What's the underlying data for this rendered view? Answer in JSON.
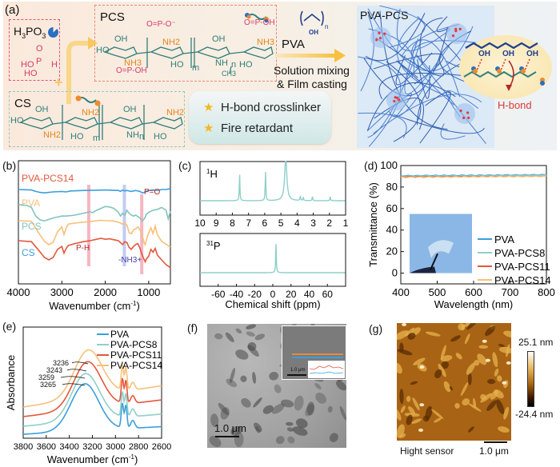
{
  "panel_a": {
    "label": "(a)",
    "h3po3": {
      "title_main": "H",
      "title_sub1": "3",
      "title_mid": "PO",
      "title_sub2": "3",
      "formula_o": "O",
      "formula_p": "P",
      "formula_h": "H",
      "formula_ho1": "HO",
      "formula_ho2": "HO"
    },
    "pcs_title": "PCS",
    "cs_title": "CS",
    "pva_label": "PVA",
    "pva_repeat_oh": "OH",
    "pva_repeat_n": "n",
    "process_line1": "Solution mixing",
    "process_line2": "& Film casting",
    "composite_title": "PVA-PCS",
    "features": [
      "H-bond crosslinker",
      "Fire retardant"
    ],
    "hbond_label": "H-bond",
    "bubble_oh": [
      "OH",
      "OH",
      "OH"
    ],
    "groups": {
      "nh2": "NH2",
      "nh3": "NH3",
      "oh": "OH",
      "ho": "HO",
      "m": "m",
      "n": "n",
      "ch3": "CH3",
      "nh": "NH"
    },
    "colors": {
      "pcs_box": "#e9877a",
      "cs_box": "#8fc9c6",
      "h3po3_box": "#e2507a",
      "arrow": "#f7c862",
      "chain": "#2f7f7a",
      "phosphite": "#d63b6a",
      "amine": "#e0871c",
      "hbond": "#d83a3a"
    }
  },
  "chart_data": [
    {
      "id": "b",
      "type": "line",
      "panel_label": "(b)",
      "title": "",
      "xlabel": "Wavenumber (cm-1)",
      "ylabel": "",
      "xlim": [
        4000,
        500
      ],
      "x_ticks": [
        4000,
        3000,
        2000,
        1000
      ],
      "x_tick_labels": [
        "4000",
        "3000",
        "2000",
        "1000"
      ],
      "y_ticks_shown": false,
      "series": [
        {
          "name": "PVA-PCS14",
          "color": "#e4573c",
          "offset": 3,
          "x": [
            4000,
            3700,
            3550,
            3400,
            3300,
            3200,
            3100,
            3000,
            2950,
            2900,
            2850,
            2700,
            2500,
            2350,
            2200,
            2100,
            2000,
            1900,
            1800,
            1700,
            1650,
            1600,
            1550,
            1500,
            1450,
            1400,
            1350,
            1300,
            1250,
            1200,
            1150,
            1100,
            1080,
            1050,
            1000,
            950,
            900,
            850,
            800,
            700,
            600,
            500
          ],
          "y": [
            0.9,
            0.88,
            0.72,
            0.55,
            0.5,
            0.55,
            0.72,
            0.78,
            0.64,
            0.74,
            0.8,
            0.84,
            0.88,
            0.9,
            0.93,
            0.95,
            0.93,
            0.94,
            0.92,
            0.9,
            0.86,
            0.82,
            0.88,
            0.86,
            0.76,
            0.72,
            0.78,
            0.82,
            0.84,
            0.74,
            0.6,
            0.5,
            0.46,
            0.52,
            0.58,
            0.72,
            0.66,
            0.74,
            0.6,
            0.5,
            0.4,
            0.34
          ]
        },
        {
          "name": "PVA",
          "color": "#f7c07a",
          "offset": 2,
          "x": [
            4000,
            3700,
            3550,
            3400,
            3300,
            3200,
            3100,
            3000,
            2950,
            2900,
            2850,
            2700,
            2500,
            2350,
            2200,
            2100,
            2000,
            1900,
            1800,
            1700,
            1650,
            1600,
            1550,
            1500,
            1450,
            1400,
            1350,
            1300,
            1250,
            1200,
            1150,
            1100,
            1080,
            1050,
            1000,
            950,
            900,
            850,
            800,
            700,
            600,
            500
          ],
          "y": [
            0.85,
            0.84,
            0.62,
            0.42,
            0.35,
            0.4,
            0.62,
            0.72,
            0.56,
            0.7,
            0.78,
            0.8,
            0.82,
            0.83,
            0.85,
            0.86,
            0.85,
            0.85,
            0.84,
            0.82,
            0.8,
            0.78,
            0.8,
            0.76,
            0.6,
            0.58,
            0.66,
            0.68,
            0.72,
            0.66,
            0.54,
            0.38,
            0.35,
            0.46,
            0.6,
            0.7,
            0.58,
            0.74,
            0.56,
            0.42,
            0.36,
            0.3
          ]
        },
        {
          "name": "PCS",
          "color": "#82c4bc",
          "offset": 1,
          "x": [
            4000,
            3800,
            3700,
            3600,
            3500,
            3400,
            3300,
            3200,
            3000,
            2900,
            2700,
            2500,
            2350,
            2300,
            2200,
            2100,
            2000,
            1900,
            1800,
            1700,
            1650,
            1600,
            1550,
            1500,
            1450,
            1400,
            1350,
            1300,
            1200,
            1150,
            1100,
            1050,
            1000,
            950,
            900,
            800,
            700,
            600,
            550,
            500
          ],
          "y": [
            0.72,
            0.7,
            0.66,
            0.48,
            0.4,
            0.38,
            0.41,
            0.44,
            0.48,
            0.48,
            0.5,
            0.54,
            0.57,
            0.55,
            0.6,
            0.64,
            0.68,
            0.67,
            0.64,
            0.56,
            0.48,
            0.54,
            0.5,
            0.6,
            0.54,
            0.5,
            0.48,
            0.5,
            0.44,
            0.38,
            0.42,
            0.52,
            0.56,
            0.58,
            0.6,
            0.62,
            0.66,
            0.6,
            0.42,
            0.58
          ]
        },
        {
          "name": "CS",
          "color": "#3b9fdb",
          "offset": 0,
          "x": [
            4000,
            3700,
            3600,
            3500,
            3400,
            3300,
            3200,
            3000,
            2900,
            2800,
            2500,
            2000,
            1700,
            1650,
            1600,
            1550,
            1500,
            1400,
            1300,
            1200,
            1150,
            1100,
            1050,
            1000,
            900,
            800,
            700,
            600,
            500
          ],
          "y": [
            0.5,
            0.49,
            0.46,
            0.44,
            0.43,
            0.44,
            0.45,
            0.46,
            0.45,
            0.47,
            0.48,
            0.49,
            0.48,
            0.46,
            0.49,
            0.47,
            0.48,
            0.46,
            0.48,
            0.46,
            0.43,
            0.44,
            0.47,
            0.48,
            0.49,
            0.48,
            0.5,
            0.5,
            0.52
          ]
        }
      ],
      "annotations": [
        {
          "text": "P-H",
          "color": "#b02a2a",
          "band_x": 2380,
          "band_color": "#f3a9b7"
        },
        {
          "text": "-NH3+",
          "color": "#4b3fa3",
          "band_x": 1560,
          "band_color": "#b7c3ef"
        },
        {
          "text": "P=O",
          "color": "#b02a2a",
          "band_x": 1160,
          "band_color": "#f3a9b7"
        }
      ]
    },
    {
      "id": "c1",
      "type": "line",
      "panel_label": "(c)",
      "title": "1H",
      "nucleus_sup": "1",
      "nucleus_base": "H",
      "xlabel": "",
      "xlim": [
        10,
        1
      ],
      "x_ticks": [
        10,
        9,
        8,
        7,
        6,
        5,
        4,
        3,
        2,
        1
      ],
      "x_tick_labels": [
        "10",
        "9",
        "8",
        "7",
        "6",
        "5",
        "4",
        "3",
        "2",
        "1"
      ],
      "color": "#8ecfc9",
      "peaks": [
        {
          "ppm": 7.55,
          "height": 0.78
        },
        {
          "ppm": 5.95,
          "height": 0.85
        },
        {
          "ppm": 4.7,
          "height": 1.3,
          "broad": true
        },
        {
          "ppm": 3.8,
          "height": 0.14
        },
        {
          "ppm": 3.62,
          "height": 0.1
        },
        {
          "ppm": 3.05,
          "height": 0.12
        },
        {
          "ppm": 1.95,
          "height": 0.12
        }
      ]
    },
    {
      "id": "c2",
      "type": "line",
      "title": "31P",
      "nucleus_sup": "31",
      "nucleus_base": "P",
      "xlabel": "Chemical shift (ppm)",
      "xlim": [
        -80,
        80
      ],
      "x_ticks": [
        -60,
        -40,
        -20,
        0,
        20,
        40,
        60
      ],
      "x_tick_labels": [
        "-60",
        "-40",
        "-20",
        "0",
        "20",
        "40",
        "60"
      ],
      "color": "#8ecfc9",
      "peaks": [
        {
          "ppm": 3.5,
          "height": 0.95
        }
      ]
    },
    {
      "id": "d",
      "type": "line",
      "panel_label": "(d)",
      "xlabel": "Wavelength (nm)",
      "ylabel": "Transmittance (%)",
      "xlim": [
        400,
        800
      ],
      "ylim": [
        -10,
        100
      ],
      "x_ticks": [
        400,
        500,
        600,
        700,
        800
      ],
      "x_tick_labels": [
        "400",
        "500",
        "600",
        "700",
        "800"
      ],
      "y_ticks": [
        0,
        20,
        40,
        60,
        80,
        100
      ],
      "y_tick_labels": [
        "0",
        "20",
        "40",
        "60",
        "80",
        "100"
      ],
      "legend_position": "bottom-right",
      "series": [
        {
          "name": "PVA",
          "color": "#3b9fdb",
          "x": [
            400,
            800
          ],
          "y": [
            90.5,
            91.5
          ]
        },
        {
          "name": "PVA-PCS8",
          "color": "#8ecfc9",
          "x": [
            400,
            800
          ],
          "y": [
            90.0,
            91.0
          ]
        },
        {
          "name": "PVA-PCS11",
          "color": "#e4573c",
          "x": [
            400,
            800
          ],
          "y": [
            89.5,
            90.0
          ]
        },
        {
          "name": "PVA-PCS14",
          "color": "#f7c07a",
          "x": [
            400,
            800
          ],
          "y": [
            89.0,
            90.0
          ]
        }
      ],
      "inset": "photo of transparent bent film held by tweezers"
    },
    {
      "id": "e",
      "type": "line",
      "panel_label": "(e)",
      "xlabel": "Wavenumber (cm-1)",
      "ylabel": "Absorbance",
      "xlim": [
        3800,
        2600
      ],
      "x_ticks": [
        3800,
        3600,
        3400,
        3200,
        3000,
        2800,
        2600
      ],
      "x_tick_labels": [
        "3800",
        "3600",
        "3400",
        "3200",
        "3000",
        "2800",
        "2600"
      ],
      "legend_position": "top-right",
      "series": [
        {
          "name": "PVA",
          "color": "#3b9fdb",
          "peak": 3265,
          "offset": 0
        },
        {
          "name": "PVA-PCS8",
          "color": "#8ecfc9",
          "peak": 3259,
          "offset": 1
        },
        {
          "name": "PVA-PCS11",
          "color": "#e4573c",
          "peak": 3243,
          "offset": 2
        },
        {
          "name": "PVA-PCS14",
          "color": "#f7c07a",
          "peak": 3236,
          "offset": 3
        }
      ],
      "annotations": [
        "3236",
        "3243",
        "3259",
        "3265"
      ]
    }
  ],
  "panel_f": {
    "label": "(f)",
    "scale_bar": "1.0 μm",
    "inset_scale_bar": "1.0 μm"
  },
  "panel_g": {
    "label": "(g)",
    "colorbar_max": "25.1 nm",
    "colorbar_min": "-24.4 nm",
    "caption": "Hight sensor",
    "scale_bar": "1.0 μm"
  }
}
